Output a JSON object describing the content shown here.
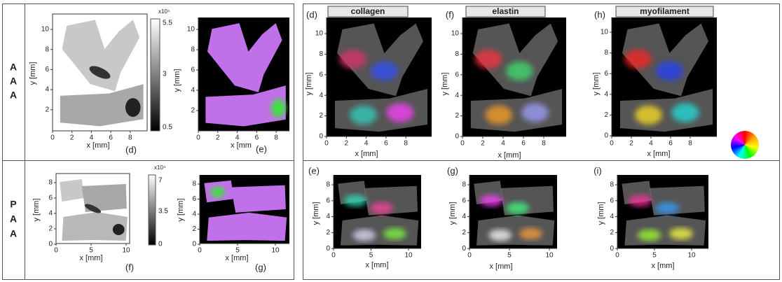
{
  "row_labels": [
    [
      "A",
      "A",
      "A"
    ],
    [
      "P",
      "A",
      "A"
    ]
  ],
  "column_headers": [
    "collagen",
    "elastin",
    "myofilament"
  ],
  "panels": [
    {
      "caption": "(d)",
      "xlabel": "x [mm]",
      "ylabel": "y [mm]",
      "xticks": [
        0,
        2,
        4,
        6,
        8
      ],
      "yticks": [
        10,
        8,
        6,
        4,
        2
      ],
      "colorbar": {
        "exponent": "x10⁴",
        "ticks": [
          "5.5",
          "3",
          "0.5"
        ]
      }
    },
    {
      "caption": "(e)",
      "xlabel": "x [mm",
      "ylabel": "y [mm]",
      "xticks": [
        0,
        2,
        4,
        6,
        8
      ],
      "yticks": [
        10,
        8,
        6,
        4,
        2
      ]
    },
    {
      "caption": "(f)",
      "xlabel": "x [mm]",
      "ylabel": "y [mm]",
      "xticks": [
        0,
        5,
        10
      ],
      "yticks": [
        8,
        6,
        4,
        2,
        0
      ],
      "colorbar": {
        "exponent": "x10⁴",
        "ticks": [
          "7",
          "3.5",
          "0"
        ]
      }
    },
    {
      "caption": "(g)",
      "xlabel": "x [mm]",
      "ylabel": "y [mm]",
      "xticks": [
        0,
        5,
        10
      ],
      "yticks": [
        8,
        6,
        4,
        2,
        0
      ]
    },
    {
      "caption": "(d)",
      "xlabel": "x [mm]",
      "ylabel": "y [mm]",
      "xticks": [
        0,
        2,
        4,
        6,
        8
      ],
      "yticks": [
        10,
        8,
        6,
        4,
        2,
        0
      ]
    },
    {
      "caption": "(f)",
      "xlabel": "x [mm]",
      "ylabel": "y [mm]",
      "xticks": [
        0,
        2,
        4,
        6,
        8
      ],
      "yticks": [
        10,
        8,
        6,
        4,
        2,
        0
      ]
    },
    {
      "caption": "(h)",
      "xlabel": "x [mm]",
      "ylabel": "y [mm]",
      "xticks": [
        0,
        2,
        4,
        6,
        8
      ],
      "yticks": [
        10,
        8,
        6,
        4,
        2,
        0
      ]
    },
    {
      "caption": "(e)",
      "xlabel": "x [mm]",
      "ylabel": "y [mm]",
      "xticks": [
        0,
        5,
        10
      ],
      "yticks": [
        8,
        6,
        4,
        2,
        0
      ]
    },
    {
      "caption": "(g)",
      "xlabel": "x [mm]",
      "ylabel": "y [mm]",
      "xticks": [
        0,
        5,
        10
      ],
      "yticks": [
        8,
        6,
        4,
        2,
        0
      ]
    },
    {
      "caption": "(i)",
      "xlabel": "x [mm]",
      "ylabel": "y [mm]",
      "xticks": [
        0,
        5,
        10
      ],
      "yticks": [
        8,
        6,
        4,
        2,
        0
      ]
    }
  ]
}
